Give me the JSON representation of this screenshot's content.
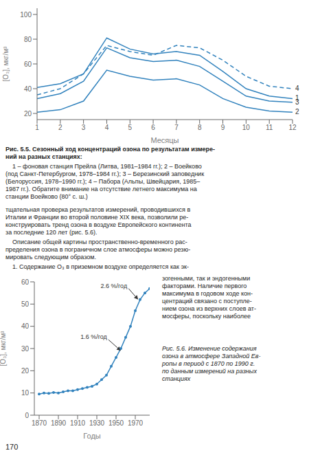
{
  "chart_data": [
    {
      "type": "line",
      "x": [
        1,
        2,
        3,
        4,
        5,
        6,
        7,
        8,
        9,
        10,
        11,
        12
      ],
      "xlim": [
        1,
        12
      ],
      "ylim": [
        15,
        105
      ],
      "xticks": [
        1,
        2,
        3,
        4,
        5,
        6,
        7,
        8,
        9,
        10,
        11,
        12
      ],
      "yticks": [
        20,
        40,
        60,
        80,
        100
      ],
      "x_label": "Месяцы",
      "y_label": "[O₃], мкг/м³",
      "grid": false,
      "series": [
        {
          "name": "1",
          "line_style": "solid",
          "values": [
            41,
            44,
            52,
            81,
            72,
            68,
            70,
            67,
            54,
            40,
            34,
            32
          ]
        },
        {
          "name": "3",
          "line_style": "solid",
          "values": [
            32,
            36,
            46,
            73,
            65,
            62,
            63,
            58,
            46,
            34,
            30,
            29
          ]
        },
        {
          "name": "4",
          "line_style": "dashed",
          "values": [
            35,
            40,
            52,
            75,
            70,
            67,
            75,
            73,
            63,
            50,
            42,
            40
          ]
        },
        {
          "name": "2",
          "line_style": "solid",
          "values": [
            21,
            23,
            30,
            55,
            50,
            47,
            48,
            43,
            32,
            25,
            22,
            21
          ]
        }
      ]
    },
    {
      "type": "line",
      "x": [
        1870,
        1875,
        1880,
        1885,
        1890,
        1895,
        1900,
        1905,
        1910,
        1915,
        1920,
        1925,
        1930,
        1935,
        1940,
        1945,
        1950,
        1955,
        1960,
        1965,
        1970,
        1975,
        1980,
        1985
      ],
      "values": [
        9.5,
        10,
        9.8,
        10.2,
        10,
        10.5,
        11,
        11,
        11.5,
        12,
        12.5,
        13,
        14,
        16,
        18,
        22,
        26,
        30,
        35,
        40,
        47,
        52,
        55,
        57
      ],
      "marker": "o",
      "line_style": "solid",
      "xlim": [
        1865,
        1985
      ],
      "ylim": [
        0,
        60
      ],
      "xticks": [
        1870,
        1890,
        1910,
        1930,
        1950,
        1970
      ],
      "yticks": [
        0,
        10,
        20,
        30,
        40,
        50,
        60
      ],
      "x_label": "Годы",
      "y_label": "[O₃], мкг/м³",
      "grid": false,
      "annotations": [
        {
          "text": "1.6 %/год",
          "x": 1955,
          "y": 29,
          "text_x": 1942,
          "text_y": 34
        },
        {
          "text": "2.6 %/год",
          "x": 1973,
          "y": 52,
          "text_x": 1963,
          "text_y": 57
        }
      ]
    }
  ],
  "annotations": [
    "Рис. 5.5. Сезонный ход концентраций озона по результатам измере-\nний на разных станциях:",
    "    1 – фоновая станция Прейла (Литва, 1981–1984 гг.); 2 – Воейково\n(под Санкт-Петербургом, 1978–1984 гг.); 3 – Березинский заповедник\n(Белоруссия, 1978–1990 гг.); 4 – Пабора (Альпы, Швейцария, 1985–\n1987 гг.). Обратите внимание на отсутствие летнего максимума на\nстанции Воейково (80° с. ш.)",
    "тщательная проверка результатов измерений, проводившихся в\nИталии и Франции во второй половине XIX века, позволили ре-\nконструировать тренд озона в воздухе Европейского континента\nза последние 120 лет (рис. 5.6).",
    "    Описание общей картины пространственно-временного рас-\nпределения озона в пограничном слое атмосферы можно резю-\nмировать следующим образом.",
    "    1. Содержание O₃ в приземном воздухе определяется как эк-",
    "зогенными, так и эндогенными\nфакторами. Наличие первого\nмаксимума в годовом ходе кон-\nцентраций связано с поступле-\nнием озона из верхних слоев ат-\nмосферы, поскольку наиболее",
    "Рис. 5.6. Изменение содержания\nозона в атмосфере Западной Ев-\nропы в период с 1870 по 1990 г.\nпо данным измерений на разных\nстанциях",
    "170"
  ]
}
